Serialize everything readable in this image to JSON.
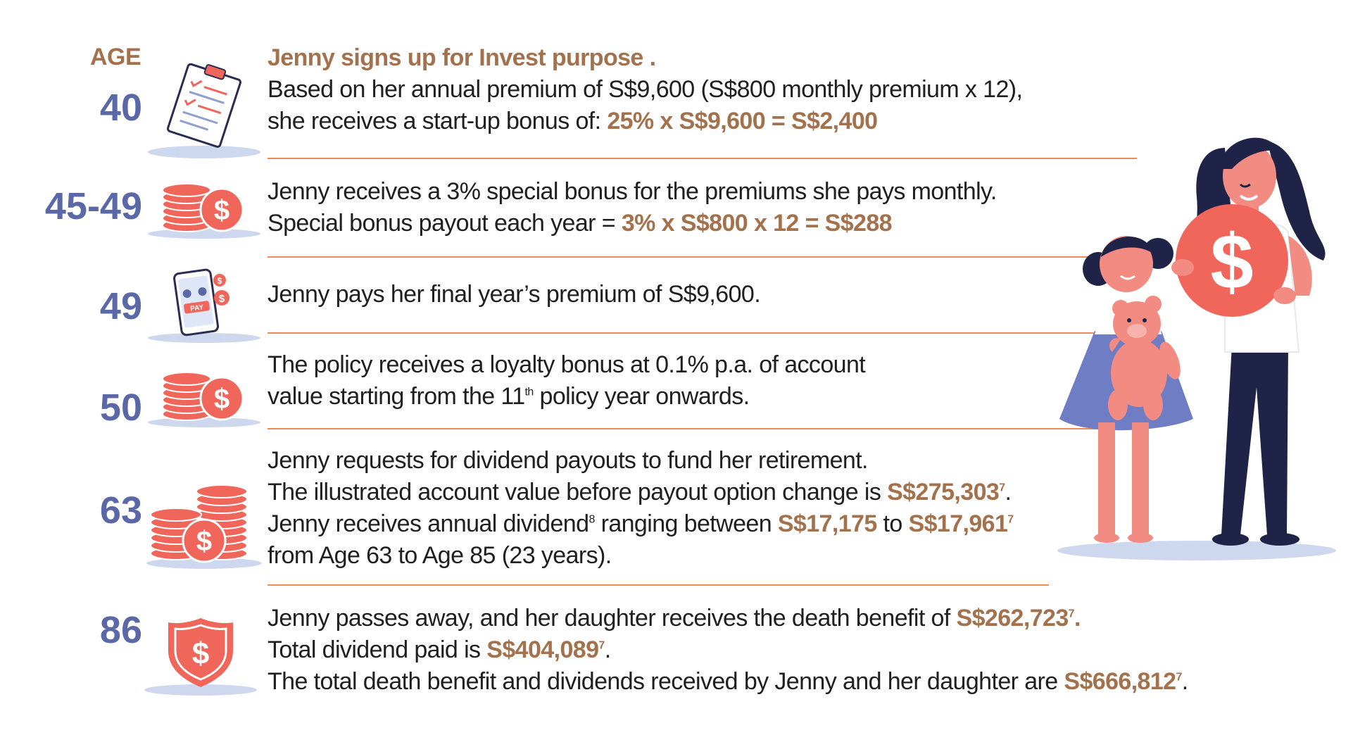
{
  "header": {
    "age_label": "AGE"
  },
  "rows": [
    {
      "age": "40",
      "icon": "checklist-clipboard-icon",
      "title": "Jenny signs up for Invest purpose .",
      "line1": "Based on her annual premium of S$9,600 (S$800 monthly premium x 12),",
      "line2_pre": "she receives a start-up bonus of:  ",
      "line2_hl": "25% x S$9,600 = S$2,400"
    },
    {
      "age": "45-49",
      "icon": "coin-stack-dollar-icon",
      "line1": "Jenny receives a 3% special bonus for the premiums she pays monthly.",
      "line2_pre": "Special bonus payout each year = ",
      "line2_hl": "3% x S$800 x 12 = S$288"
    },
    {
      "age": "49",
      "icon": "mobile-pay-icon",
      "pay_label": "PAY",
      "line1": "Jenny pays her final year’s premium of S$9,600."
    },
    {
      "age": "50",
      "icon": "coin-stack-dollar-icon",
      "line1": "The policy receives a loyalty bonus at 0.1% p.a. of account",
      "line2_pre": "value starting from the 11",
      "line2_sup": "th",
      "line2_post": "  policy year onwards."
    },
    {
      "age": "63",
      "icon": "large-coin-stacks-icon",
      "line1": "Jenny requests for dividend payouts to fund her retirement.",
      "line2_pre": "The illustrated account value before payout option change is  ",
      "line2_hl": "S$275,303",
      "line2_sup": "7",
      "line2_post": ".",
      "line3_pre": "Jenny receives annual dividend",
      "line3_sup": "8",
      "line3_mid": " ranging between ",
      "line3_hl1": "S$17,175",
      "line3_to": " to ",
      "line3_hl2": "S$17,961",
      "line3_sup2": "7",
      "line4": "from Age 63 to Age 85 (23 years)."
    },
    {
      "age": "86",
      "icon": "shield-dollar-icon",
      "line1_pre": "Jenny passes away, and her daughter receives the death benefit of ",
      "line1_hl": "S$262,723",
      "line1_sup": "7",
      "line1_post": ".",
      "line2_pre": "Total dividend paid is ",
      "line2_hl": "S$404,089",
      "line2_sup": "7",
      "line2_post": ".",
      "line3_pre": "The total death benefit and dividends received by Jenny and her daughter are  ",
      "line3_hl": "S$666,812",
      "line3_sup": "7",
      "line3_post": "."
    }
  ],
  "colors": {
    "age": "#5a68a8",
    "highlight": "#a3724d",
    "rule": "#ef8c55",
    "coin": "#f0665a",
    "shadow": "#cdd8ee"
  },
  "illustration": "mother-and-daughter-with-coin-illustration"
}
